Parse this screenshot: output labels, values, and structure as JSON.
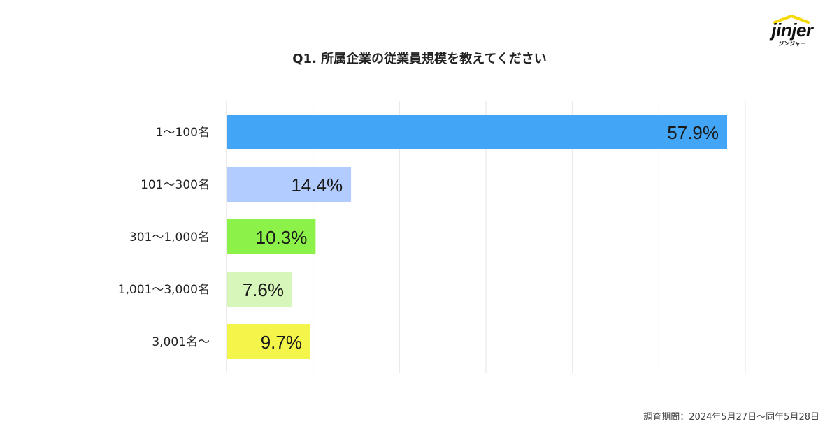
{
  "chart_data": {
    "type": "bar",
    "orientation": "horizontal",
    "title": "Q1. 所属企業の従業員規模を教えてください",
    "categories": [
      "1～100名",
      "101～300名",
      "301～1,000名",
      "1,001～3,000名",
      "3,001名～"
    ],
    "values": [
      57.9,
      14.4,
      10.3,
      7.6,
      9.7
    ],
    "value_labels": [
      "57.9%",
      "14.4%",
      "10.3%",
      "7.6%",
      "9.7%"
    ],
    "colors": [
      "#42A5F5",
      "#B3CCFF",
      "#8CF249",
      "#D6F7B9",
      "#F4F54A"
    ],
    "xlim": [
      0,
      60
    ],
    "grid": true,
    "xlabel": "",
    "ylabel": ""
  },
  "brand": {
    "name": "jinjer",
    "kana": "ジンジャー",
    "accent": "#F5D90A"
  },
  "footer": {
    "survey_period": "調査期間：2024年5月27日～同年5月28日"
  }
}
